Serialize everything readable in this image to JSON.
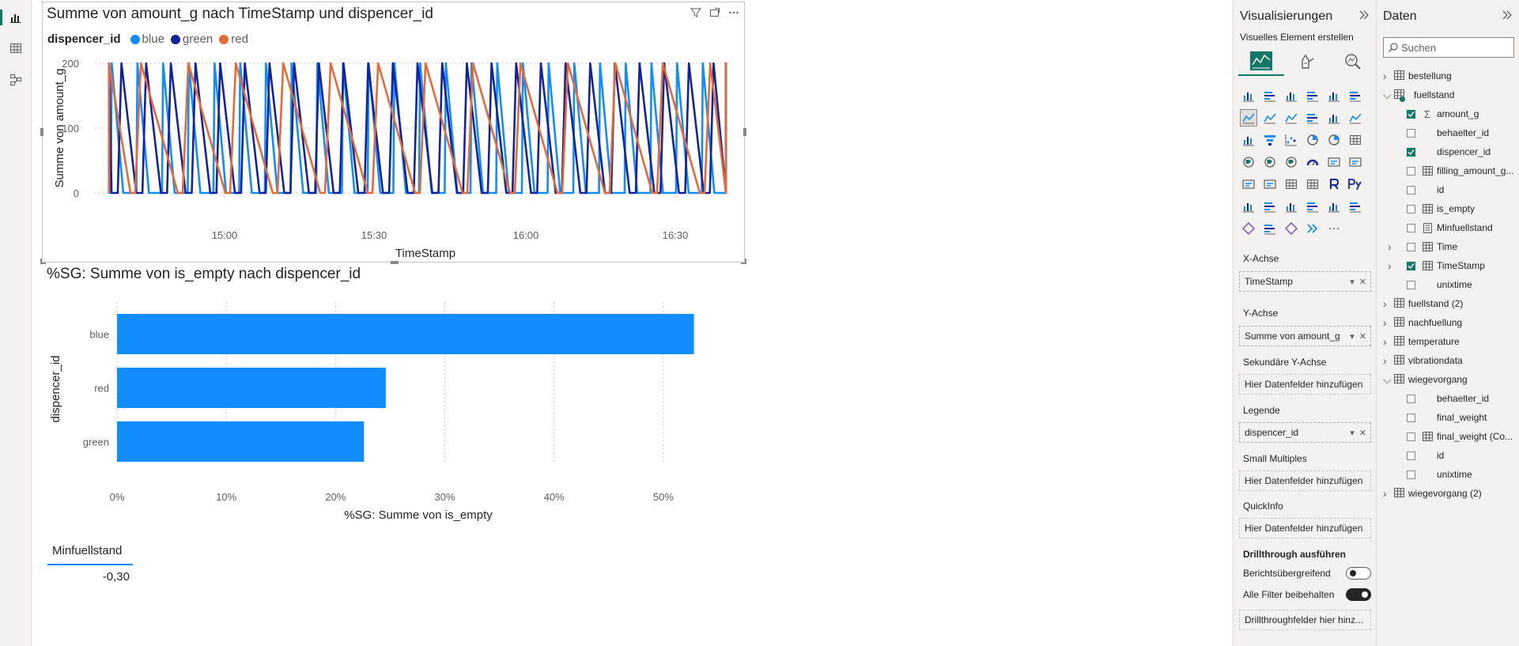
{
  "line_chart": {
    "title": "Summe von amount_g nach TimeStamp und dispencer_id",
    "legend_title": "dispencer_id",
    "legend": [
      {
        "label": "blue",
        "color": "#118DFF"
      },
      {
        "label": "green",
        "color": "#12239E"
      },
      {
        "label": "red",
        "color": "#E66C37"
      }
    ],
    "header_icons": [
      "filter-icon",
      "focus-mode-icon",
      "more-options-icon"
    ]
  },
  "bar_chart": {
    "title": "%SG: Summe von is_empty nach dispencer_id"
  },
  "card": {
    "title": "Minfuellstand",
    "value": "-0,30"
  },
  "chart_data": [
    {
      "type": "line",
      "title": "Summe von amount_g nach TimeStamp und dispencer_id",
      "xlabel": "TimeStamp",
      "ylabel": "Summe von amount_g",
      "x_ticks": [
        "15:00",
        "15:30",
        "16:00",
        "16:30"
      ],
      "y_ticks": [
        0,
        100,
        200
      ],
      "ylim": [
        0,
        200
      ],
      "grid": true,
      "legend_position": "top-left",
      "series": [
        {
          "name": "blue",
          "color": "#118DFF",
          "pattern": "sawtooth-repeating",
          "peak": 200,
          "trough": 0,
          "cycles": 24
        },
        {
          "name": "green",
          "color": "#12239E",
          "pattern": "sawtooth-repeating",
          "peak": 200,
          "trough": 0,
          "cycles": 25
        },
        {
          "name": "red",
          "color": "#E66C37",
          "pattern": "sawtooth-repeating",
          "peak": 200,
          "trough": 0,
          "cycles": 13
        }
      ]
    },
    {
      "type": "bar",
      "orientation": "horizontal",
      "title": "%SG: Summe von is_empty nach dispencer_id",
      "xlabel": "%SG: Summe von is_empty",
      "ylabel": "dispencer_id",
      "categories": [
        "blue",
        "red",
        "green"
      ],
      "values": [
        52.8,
        24.6,
        22.6
      ],
      "x_ticks": [
        "0%",
        "10%",
        "20%",
        "30%",
        "40%",
        "50%"
      ],
      "xlim": [
        0,
        55
      ],
      "color": "#118DFF",
      "grid": true
    }
  ],
  "viz_pane": {
    "title": "Visualisierungen",
    "subtitle": "Visuelles Element erstellen",
    "type_tabs": [
      "build-visual-icon",
      "format-visual-icon",
      "analytics-icon"
    ],
    "wells": [
      {
        "label": "X-Achse",
        "value": "TimeStamp",
        "filled": true
      },
      {
        "label": "Y-Achse",
        "value": "Summe von amount_g",
        "filled": true
      },
      {
        "label": "Sekundäre Y-Achse",
        "value": "Hier Datenfelder hinzufügen",
        "filled": false
      },
      {
        "label": "Legende",
        "value": "dispencer_id",
        "filled": true
      },
      {
        "label": "Small Multiples",
        "value": "Hier Datenfelder hinzufügen",
        "filled": false
      },
      {
        "label": "QuickInfo",
        "value": "Hier Datenfelder hinzufügen",
        "filled": false
      }
    ],
    "drillthrough": {
      "title": "Drillthrough ausführen",
      "cross_report": "Berichtsübergreifend",
      "keep_filters": "Alle Filter beibehalten",
      "field_well": "Drillthroughfelder hier hinz..."
    }
  },
  "data_pane": {
    "title": "Daten",
    "search_placeholder": "Suchen",
    "tree": [
      {
        "kind": "table",
        "label": "bestellung",
        "expanded": false
      },
      {
        "kind": "table",
        "label": "fuellstand",
        "expanded": true,
        "checked_badge": true
      },
      {
        "kind": "field",
        "label": "amount_g",
        "checked": true,
        "icon": "sigma"
      },
      {
        "kind": "field",
        "label": "behaelter_id",
        "checked": false,
        "icon": ""
      },
      {
        "kind": "field",
        "label": "dispencer_id",
        "checked": true,
        "icon": ""
      },
      {
        "kind": "field",
        "label": "filling_amount_g...",
        "checked": false,
        "icon": "table"
      },
      {
        "kind": "field",
        "label": "id",
        "checked": false,
        "icon": ""
      },
      {
        "kind": "field",
        "label": "is_empty",
        "checked": false,
        "icon": "calc"
      },
      {
        "kind": "field",
        "label": "Minfuellstand",
        "checked": false,
        "icon": "measure"
      },
      {
        "kind": "hier",
        "label": "Time",
        "checked": false,
        "icon": "hierarchy"
      },
      {
        "kind": "hier",
        "label": "TimeStamp",
        "checked": true,
        "icon": "hierarchy"
      },
      {
        "kind": "field",
        "label": "unixtime",
        "checked": false,
        "icon": ""
      },
      {
        "kind": "table",
        "label": "fuellstand (2)",
        "expanded": false
      },
      {
        "kind": "table",
        "label": "nachfuellung",
        "expanded": false
      },
      {
        "kind": "table",
        "label": "temperature",
        "expanded": false
      },
      {
        "kind": "table",
        "label": "vibrationdata",
        "expanded": false
      },
      {
        "kind": "table",
        "label": "wiegevorgang",
        "expanded": true
      },
      {
        "kind": "field",
        "label": "behaelter_id",
        "checked": false,
        "icon": ""
      },
      {
        "kind": "field",
        "label": "final_weight",
        "checked": false,
        "icon": ""
      },
      {
        "kind": "field",
        "label": "final_weight (Co...",
        "checked": false,
        "icon": "table"
      },
      {
        "kind": "field",
        "label": "id",
        "checked": false,
        "icon": ""
      },
      {
        "kind": "field",
        "label": "unixtime",
        "checked": false,
        "icon": ""
      },
      {
        "kind": "table",
        "label": "wiegevorgang (2)",
        "expanded": false
      }
    ]
  }
}
